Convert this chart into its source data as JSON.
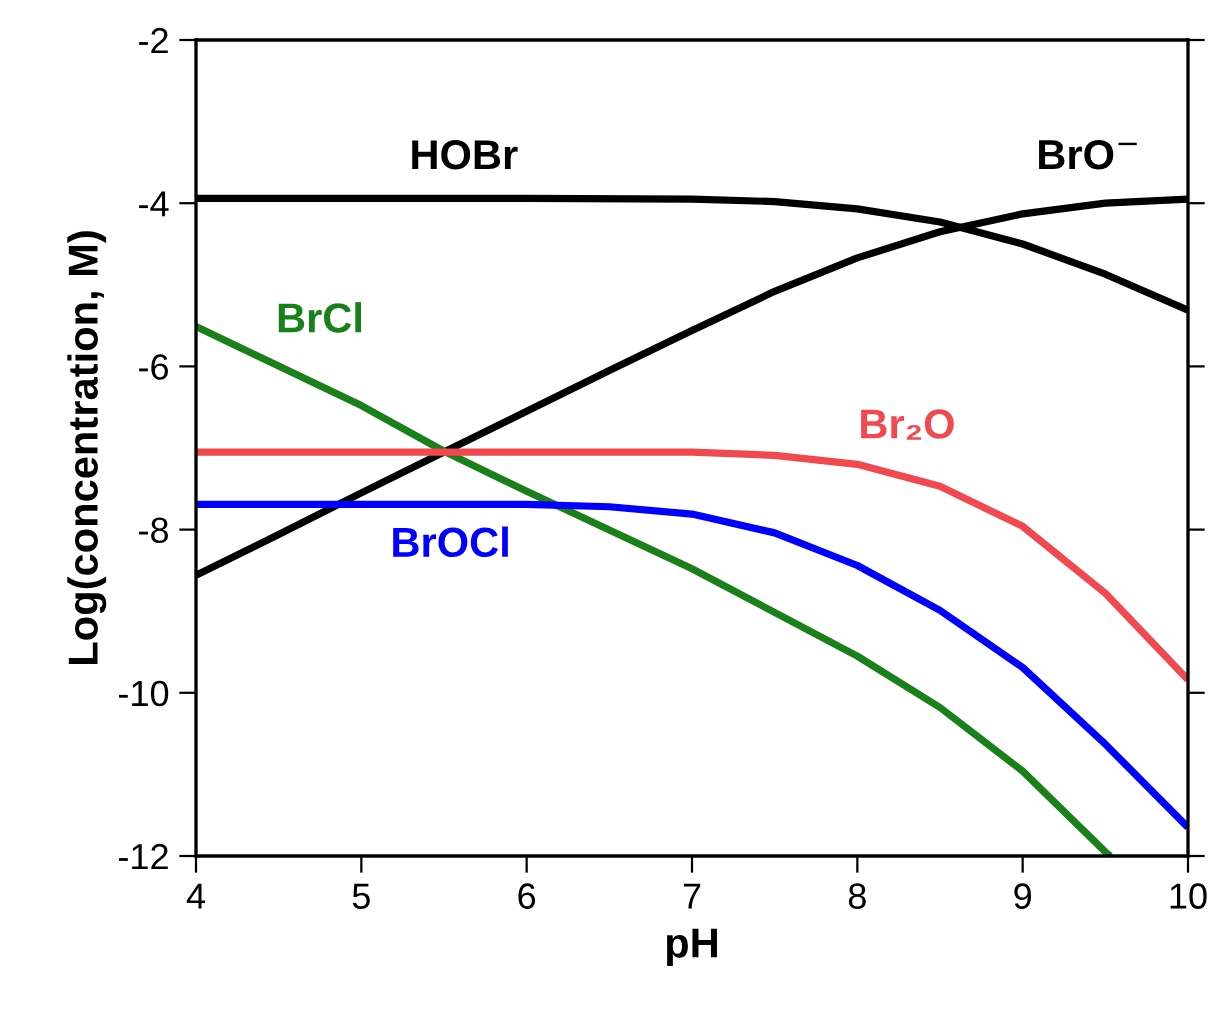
{
  "chart_data": {
    "type": "line",
    "xlabel": "pH",
    "ylabel": "Log(concentration, M)",
    "xlim": [
      4,
      10
    ],
    "ylim": [
      -12,
      -2
    ],
    "xticks": [
      4,
      5,
      6,
      7,
      8,
      9,
      10
    ],
    "yticks": [
      -12,
      -10,
      -8,
      -6,
      -4,
      -2
    ],
    "grid": false,
    "legend": false,
    "marker": "none",
    "line_style": "solid",
    "series": [
      {
        "name": "HOBr",
        "color": "#000000",
        "x": [
          4,
          5,
          6,
          7,
          7.5,
          8,
          8.5,
          9,
          9.5,
          10
        ],
        "values": [
          -3.94,
          -3.94,
          -3.94,
          -3.95,
          -3.98,
          -4.07,
          -4.23,
          -4.5,
          -4.87,
          -5.31
        ]
      },
      {
        "name": "BrO$^{−}$",
        "color": "#000000",
        "x": [
          4,
          4.5,
          5,
          5.5,
          6,
          6.5,
          7,
          7.5,
          8,
          8.5,
          9,
          9.5,
          10
        ],
        "values": [
          -8.56,
          -8.06,
          -7.55,
          -7.05,
          -6.55,
          -6.05,
          -5.56,
          -5.08,
          -4.67,
          -4.35,
          -4.13,
          -4.0,
          -3.95
        ]
      },
      {
        "name": "BrCl",
        "color": "#1a801a",
        "x": [
          4,
          5,
          5.5,
          6,
          7,
          8,
          8.5,
          9,
          9.5,
          9.53
        ],
        "values": [
          -5.51,
          -6.48,
          -7.04,
          -7.53,
          -8.48,
          -9.55,
          -10.18,
          -10.96,
          -11.95,
          -12
        ]
      },
      {
        "name": "Br₂O",
        "color": "#f24850",
        "x": [
          4,
          5,
          6,
          7,
          7.5,
          8,
          8.5,
          9,
          9.5,
          10
        ],
        "values": [
          -7.05,
          -7.05,
          -7.05,
          -7.05,
          -7.09,
          -7.2,
          -7.47,
          -7.96,
          -8.78,
          -9.84
        ]
      },
      {
        "name": "BrOCl",
        "color": "#0000ff",
        "x": [
          4,
          5,
          6,
          6.5,
          7,
          7.5,
          8,
          8.5,
          9,
          9.5,
          10
        ],
        "values": [
          -7.69,
          -7.69,
          -7.69,
          -7.72,
          -7.81,
          -8.04,
          -8.44,
          -8.99,
          -9.69,
          -10.63,
          -11.65
        ]
      }
    ]
  }
}
